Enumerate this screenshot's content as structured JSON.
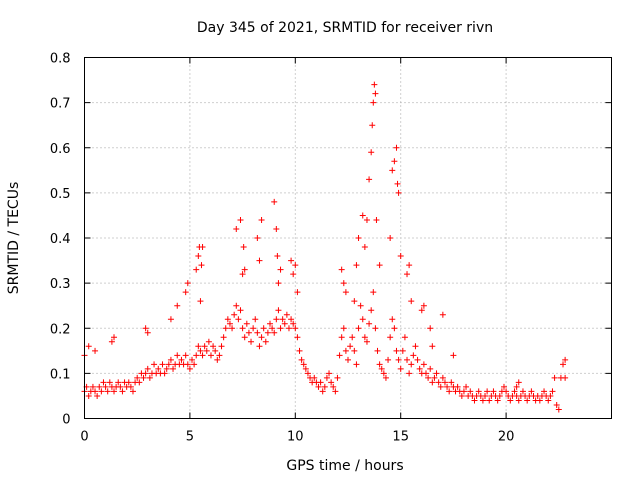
{
  "chart_data": {
    "type": "scatter",
    "title": "Day 345 of 2021, SRMTID for receiver rivn",
    "xlabel": "GPS time / hours",
    "ylabel": "SRMTID / TECUs",
    "xlim": [
      0,
      25
    ],
    "ylim": [
      0,
      0.8
    ],
    "xticks": [
      "0",
      "5",
      "10",
      "15",
      "20"
    ],
    "yticks": [
      "0",
      "0.1",
      "0.2",
      "0.3",
      "0.4",
      "0.5",
      "0.6",
      "0.7",
      "0.8"
    ],
    "grid": true,
    "marker": "+",
    "marker_color": "#ff0000",
    "series": [
      {
        "name": "rivn",
        "x": [
          0.0,
          0.1,
          0.2,
          0.3,
          0.4,
          0.5,
          0.6,
          0.7,
          0.8,
          0.9,
          1.0,
          1.1,
          1.2,
          1.3,
          1.4,
          1.5,
          1.6,
          1.7,
          1.8,
          1.9,
          2.0,
          2.1,
          2.2,
          2.3,
          2.4,
          2.5,
          2.6,
          2.7,
          2.8,
          2.9,
          3.0,
          3.1,
          3.2,
          3.3,
          3.4,
          3.5,
          3.6,
          3.7,
          3.8,
          3.9,
          4.0,
          4.1,
          4.2,
          4.3,
          4.4,
          4.5,
          4.6,
          4.7,
          4.8,
          4.9,
          5.0,
          5.1,
          5.2,
          5.3,
          5.4,
          5.5,
          5.6,
          5.7,
          5.8,
          5.9,
          6.0,
          6.1,
          6.2,
          6.3,
          6.4,
          6.5,
          6.6,
          6.7,
          6.8,
          6.9,
          7.0,
          7.1,
          7.2,
          7.3,
          7.4,
          7.5,
          7.6,
          7.7,
          7.8,
          7.9,
          8.0,
          8.1,
          8.2,
          8.3,
          8.4,
          8.5,
          8.6,
          8.7,
          8.8,
          8.9,
          9.0,
          9.1,
          9.2,
          9.3,
          9.4,
          9.5,
          9.6,
          9.7,
          9.8,
          9.9,
          10.0,
          10.1,
          10.2,
          10.3,
          10.4,
          10.5,
          10.6,
          10.7,
          10.8,
          10.9,
          11.0,
          11.1,
          11.2,
          11.3,
          11.4,
          11.5,
          11.6,
          11.7,
          11.8,
          11.9,
          12.0,
          12.1,
          12.2,
          12.3,
          12.4,
          12.5,
          12.6,
          12.7,
          12.8,
          12.9,
          13.0,
          13.1,
          13.2,
          13.3,
          13.4,
          13.5,
          13.6,
          13.7,
          13.8,
          13.9,
          14.0,
          14.1,
          14.2,
          14.3,
          14.4,
          14.5,
          14.6,
          14.7,
          14.8,
          14.9,
          15.0,
          15.1,
          15.2,
          15.3,
          15.4,
          15.5,
          15.6,
          15.7,
          15.8,
          15.9,
          16.0,
          16.1,
          16.2,
          16.3,
          16.4,
          16.5,
          16.6,
          16.7,
          16.8,
          16.9,
          17.0,
          17.1,
          17.2,
          17.3,
          17.4,
          17.5,
          17.6,
          17.7,
          17.8,
          17.9,
          18.0,
          18.1,
          18.2,
          18.3,
          18.4,
          18.5,
          18.6,
          18.7,
          18.8,
          18.9,
          19.0,
          19.1,
          19.2,
          19.3,
          19.4,
          19.5,
          19.6,
          19.7,
          19.8,
          19.9,
          20.0,
          20.1,
          20.2,
          20.3,
          20.4,
          20.5,
          20.6,
          20.7,
          20.8,
          20.9,
          21.0,
          21.1,
          21.2,
          21.3,
          21.4,
          21.5,
          21.6,
          21.7,
          21.8,
          21.9,
          22.0,
          22.1,
          22.2,
          22.3,
          22.4,
          22.5,
          22.6,
          22.7,
          22.8,
          0.0,
          0.2,
          0.5,
          1.3,
          1.4,
          2.9,
          3.0,
          4.1,
          4.4,
          4.8,
          4.9,
          5.3,
          5.4,
          5.45,
          5.5,
          5.55,
          5.6,
          7.2,
          7.4,
          7.5,
          7.55,
          7.6,
          8.2,
          8.3,
          8.4,
          9.0,
          9.1,
          9.15,
          9.2,
          9.3,
          9.8,
          9.9,
          10.0,
          10.1,
          12.2,
          12.3,
          12.4,
          12.8,
          12.9,
          13.0,
          13.2,
          13.3,
          13.4,
          13.5,
          13.6,
          13.65,
          13.7,
          13.75,
          13.8,
          13.85,
          14.0,
          14.5,
          14.6,
          14.7,
          14.8,
          14.85,
          14.9,
          15.0,
          15.3,
          15.4,
          15.5,
          16.0,
          16.1,
          16.4,
          16.5,
          17.0,
          17.5,
          20.5,
          20.6,
          22.8
        ],
        "y": [
          0.06,
          0.07,
          0.05,
          0.06,
          0.07,
          0.06,
          0.05,
          0.07,
          0.06,
          0.08,
          0.07,
          0.06,
          0.08,
          0.07,
          0.06,
          0.07,
          0.08,
          0.07,
          0.06,
          0.08,
          0.07,
          0.08,
          0.07,
          0.06,
          0.08,
          0.09,
          0.08,
          0.1,
          0.09,
          0.1,
          0.11,
          0.09,
          0.1,
          0.12,
          0.1,
          0.11,
          0.1,
          0.12,
          0.1,
          0.11,
          0.12,
          0.13,
          0.11,
          0.12,
          0.14,
          0.12,
          0.13,
          0.12,
          0.14,
          0.12,
          0.11,
          0.13,
          0.12,
          0.14,
          0.16,
          0.15,
          0.14,
          0.16,
          0.15,
          0.17,
          0.14,
          0.16,
          0.15,
          0.13,
          0.14,
          0.16,
          0.18,
          0.2,
          0.22,
          0.21,
          0.2,
          0.23,
          0.25,
          0.22,
          0.24,
          0.2,
          0.18,
          0.21,
          0.19,
          0.17,
          0.2,
          0.22,
          0.19,
          0.16,
          0.18,
          0.2,
          0.17,
          0.19,
          0.21,
          0.2,
          0.19,
          0.22,
          0.24,
          0.2,
          0.22,
          0.21,
          0.23,
          0.2,
          0.22,
          0.21,
          0.2,
          0.18,
          0.15,
          0.13,
          0.12,
          0.11,
          0.1,
          0.09,
          0.08,
          0.09,
          0.08,
          0.07,
          0.08,
          0.06,
          0.07,
          0.09,
          0.1,
          0.08,
          0.07,
          0.06,
          0.09,
          0.14,
          0.18,
          0.2,
          0.15,
          0.13,
          0.16,
          0.18,
          0.15,
          0.12,
          0.2,
          0.25,
          0.22,
          0.18,
          0.17,
          0.21,
          0.24,
          0.28,
          0.2,
          0.15,
          0.12,
          0.11,
          0.1,
          0.09,
          0.13,
          0.18,
          0.22,
          0.2,
          0.15,
          0.13,
          0.11,
          0.15,
          0.18,
          0.13,
          0.1,
          0.12,
          0.14,
          0.16,
          0.13,
          0.11,
          0.1,
          0.12,
          0.1,
          0.09,
          0.11,
          0.08,
          0.09,
          0.1,
          0.08,
          0.07,
          0.09,
          0.08,
          0.07,
          0.06,
          0.08,
          0.07,
          0.06,
          0.07,
          0.06,
          0.05,
          0.06,
          0.07,
          0.05,
          0.06,
          0.05,
          0.04,
          0.05,
          0.06,
          0.05,
          0.04,
          0.05,
          0.06,
          0.04,
          0.05,
          0.06,
          0.05,
          0.04,
          0.05,
          0.06,
          0.07,
          0.06,
          0.05,
          0.04,
          0.05,
          0.06,
          0.05,
          0.04,
          0.05,
          0.06,
          0.05,
          0.04,
          0.05,
          0.06,
          0.05,
          0.04,
          0.05,
          0.04,
          0.05,
          0.06,
          0.05,
          0.04,
          0.05,
          0.06,
          0.09,
          0.03,
          0.02,
          0.09,
          0.12,
          0.13,
          0.14,
          0.16,
          0.15,
          0.17,
          0.18,
          0.2,
          0.19,
          0.22,
          0.25,
          0.28,
          0.3,
          0.33,
          0.36,
          0.38,
          0.26,
          0.34,
          0.38,
          0.42,
          0.44,
          0.32,
          0.38,
          0.33,
          0.4,
          0.35,
          0.44,
          0.48,
          0.42,
          0.36,
          0.3,
          0.33,
          0.35,
          0.32,
          0.34,
          0.28,
          0.33,
          0.3,
          0.28,
          0.26,
          0.34,
          0.4,
          0.45,
          0.38,
          0.44,
          0.53,
          0.59,
          0.65,
          0.7,
          0.74,
          0.72,
          0.44,
          0.34,
          0.4,
          0.55,
          0.57,
          0.6,
          0.52,
          0.5,
          0.36,
          0.32,
          0.34,
          0.26,
          0.24,
          0.25,
          0.2,
          0.16,
          0.23,
          0.14,
          0.07,
          0.08,
          0.09
        ]
      }
    ]
  }
}
